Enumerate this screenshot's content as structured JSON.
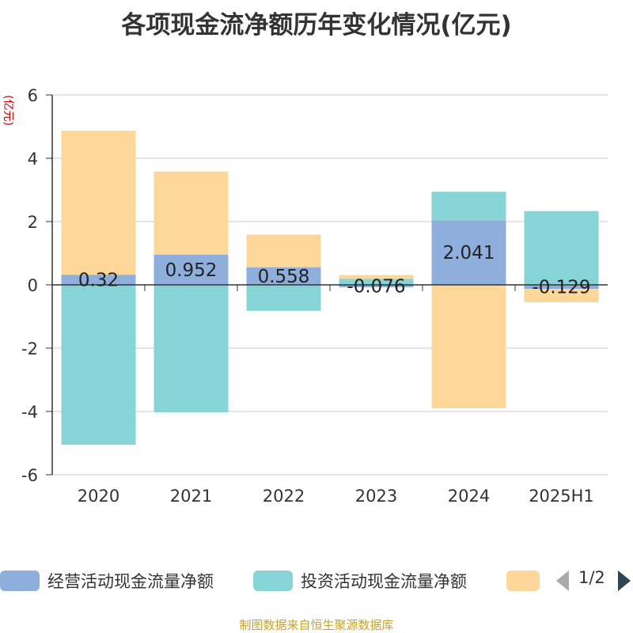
{
  "title": "各项现金流净额历年变化情况(亿元)",
  "y_unit_label": "(亿元)",
  "source_text": "制图数据来自恒生聚源数据库",
  "legend": {
    "pager": "1/2"
  },
  "colors": {
    "operating": "#8eaedb",
    "investing": "#86d4d6",
    "financing": "#fdd79a",
    "axis": "#333333",
    "grid": "#cccccc",
    "unit": "#cc0000"
  },
  "chart_data": {
    "type": "bar",
    "stacked": true,
    "categories": [
      "2020",
      "2021",
      "2022",
      "2023",
      "2024",
      "2025H1"
    ],
    "series": [
      {
        "name": "经营活动现金流量净额",
        "values": [
          0.32,
          0.952,
          0.558,
          -0.076,
          2.041,
          -0.129
        ]
      },
      {
        "name": "投资活动现金流量净额",
        "values": [
          -5.05,
          -4.03,
          -0.82,
          0.19,
          0.9,
          2.33
        ]
      },
      {
        "name": "",
        "values": [
          4.55,
          2.63,
          1.03,
          0.12,
          -3.9,
          -0.42
        ]
      }
    ],
    "data_labels": [
      "0.32",
      "0.952",
      "0.558",
      "-0.076",
      "2.041",
      "-0.129"
    ],
    "ylim": [
      -6,
      6
    ],
    "yticks": [
      6,
      4,
      2,
      0,
      -2,
      -4,
      -6
    ],
    "grid": true,
    "legend_position": "bottom"
  }
}
